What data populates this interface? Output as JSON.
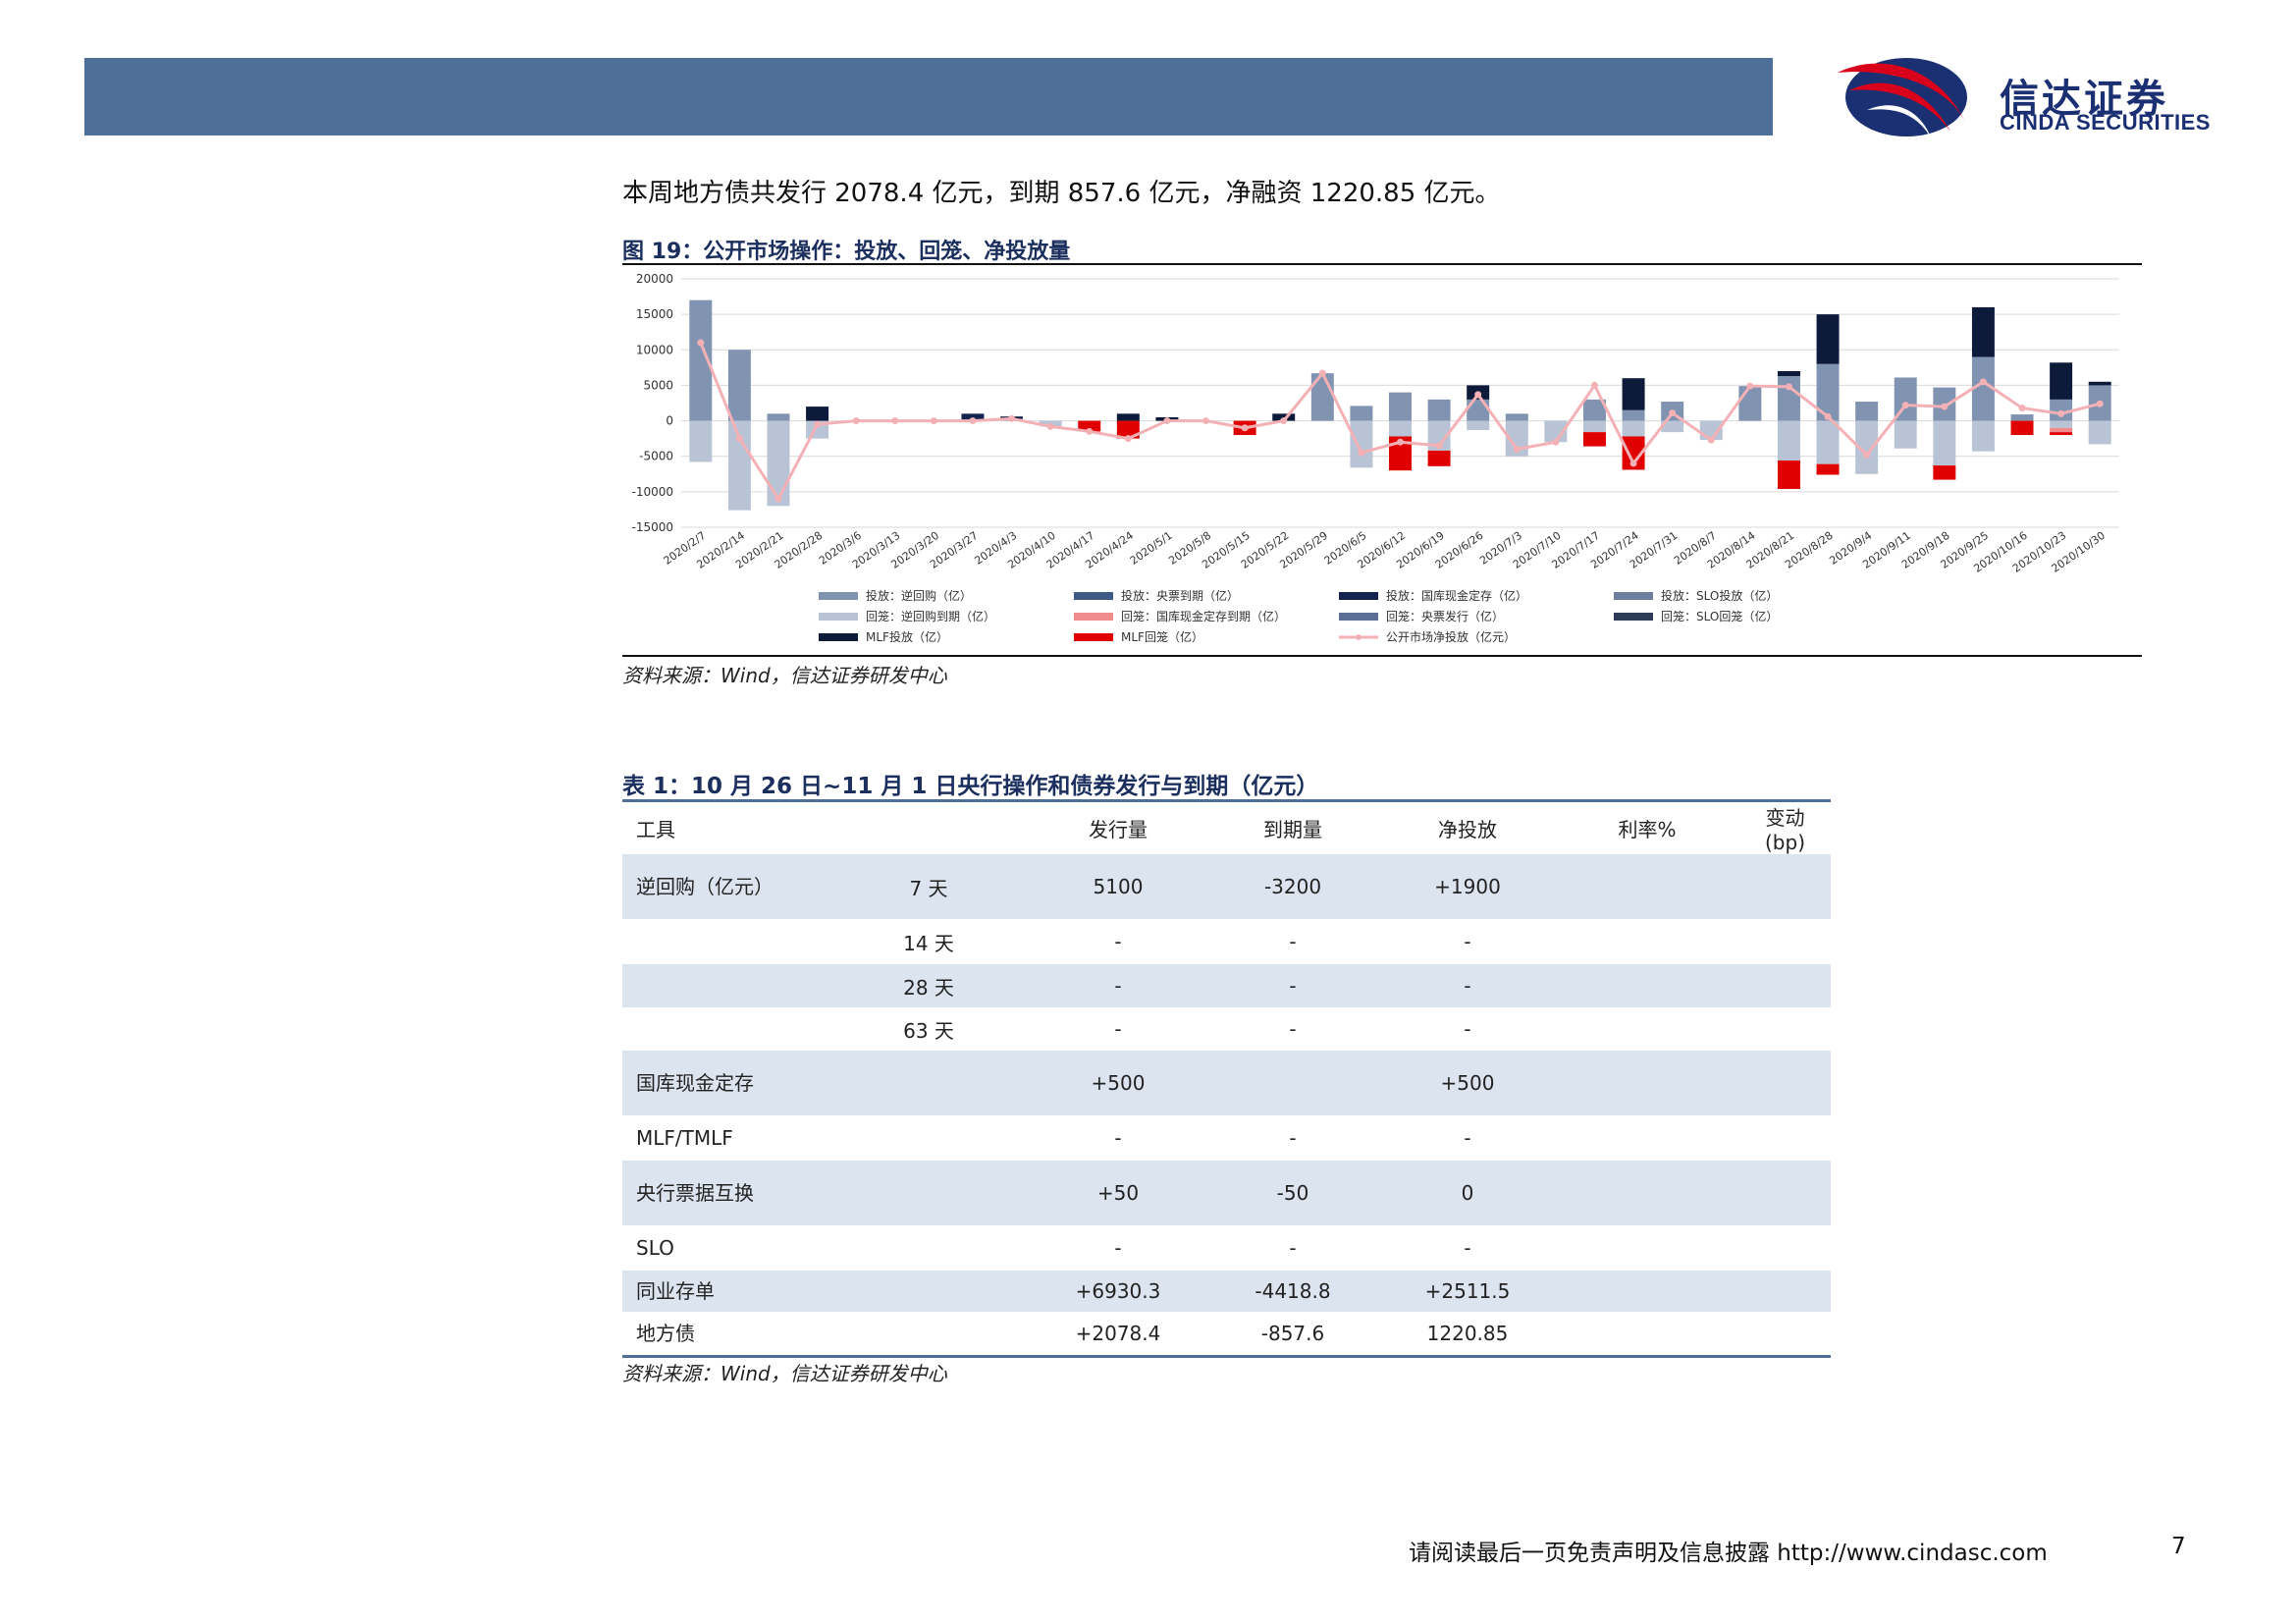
{
  "header": {
    "logo_cn": "信达证券",
    "logo_en": "CINDA SECURITIES"
  },
  "intro_text": "本周地方债共发行 2078.4 亿元，到期 857.6 亿元，净融资 1220.85 亿元。",
  "figure": {
    "title": "图 19：公开市场操作：投放、回笼、净投放量",
    "source": "资料来源：Wind，信达证券研发中心"
  },
  "chart_data": {
    "type": "bar",
    "stacked": true,
    "ylim": [
      -15000,
      20000
    ],
    "yticks": [
      20000,
      15000,
      10000,
      5000,
      0,
      -5000,
      -10000,
      -15000
    ],
    "categories": [
      "2020/2/7",
      "2020/2/14",
      "2020/2/21",
      "2020/2/28",
      "2020/3/6",
      "2020/3/13",
      "2020/3/20",
      "2020/3/27",
      "2020/4/3",
      "2020/4/10",
      "2020/4/17",
      "2020/4/24",
      "2020/5/1",
      "2020/5/8",
      "2020/5/15",
      "2020/5/22",
      "2020/5/29",
      "2020/6/5",
      "2020/6/12",
      "2020/6/19",
      "2020/6/26",
      "2020/7/3",
      "2020/7/10",
      "2020/7/17",
      "2020/7/24",
      "2020/7/31",
      "2020/8/7",
      "2020/8/14",
      "2020/8/21",
      "2020/8/28",
      "2020/9/4",
      "2020/9/11",
      "2020/9/18",
      "2020/9/25",
      "2020/10/16",
      "2020/10/23",
      "2020/10/30"
    ],
    "xticks_shown": [
      "2020/2/7",
      "2020/2/14",
      "2020/2/21",
      "2020/2/28",
      "2020/3/6",
      "2020/3/13",
      "2020/3/20",
      "2020/3/27",
      "2020/4/3",
      "2020/4/10",
      "2020/4/17",
      "2020/4/24",
      "2020/5/1",
      "2020/5/8",
      "2020/5/15",
      "2020/5/22",
      "2020/5/29",
      "2020/6/5",
      "2020/6/12",
      "2020/6/19",
      "2020/6/26",
      "2020/7/3",
      "2020/7/10",
      "2020/7/17",
      "2020/7/24",
      "2020/7/31",
      "2020/8/7",
      "2020/8/14",
      "2020/8/21",
      "2020/8/28",
      "2020/9/4",
      "2020/9/11",
      "2020/9/18",
      "2020/9/25",
      "2020/10/16",
      "2020/10/23",
      "2020/10/30"
    ],
    "series": [
      {
        "name": "投放：逆回购（亿）",
        "color": "#8093b1",
        "kind": "bar",
        "values": [
          17000,
          10000,
          1000,
          0,
          0,
          0,
          0,
          0,
          300,
          0,
          0,
          0,
          0,
          0,
          0,
          0,
          6700,
          2100,
          4000,
          3000,
          3000,
          1000,
          0,
          3000,
          1500,
          2700,
          0,
          4900,
          6300,
          8000,
          2700,
          6100,
          4700,
          9000,
          900,
          3000,
          5000
        ]
      },
      {
        "name": "回笼：逆回购到期（亿）",
        "color": "#b9c3d6",
        "kind": "bar",
        "values": [
          -5800,
          -12600,
          -12000,
          -2500,
          0,
          0,
          0,
          0,
          0,
          -800,
          0,
          0,
          0,
          0,
          0,
          0,
          0,
          -6600,
          -2200,
          -4200,
          -1300,
          -5000,
          -3000,
          -1600,
          -2200,
          -1600,
          -2700,
          0,
          -5600,
          -6100,
          -7500,
          -3900,
          -6300,
          -4300,
          0,
          -1000,
          -3300
        ]
      },
      {
        "name": "投放：央票到期（亿）",
        "color": "#3f5a85",
        "kind": "bar",
        "values": [
          0,
          0,
          0,
          0,
          0,
          0,
          0,
          0,
          0,
          0,
          0,
          0,
          0,
          0,
          0,
          0,
          0,
          0,
          0,
          0,
          0,
          0,
          0,
          0,
          0,
          0,
          0,
          0,
          0,
          0,
          0,
          0,
          0,
          0,
          0,
          0,
          0
        ]
      },
      {
        "name": "回笼：国库现金定存到期（亿）",
        "color": "#f08c8c",
        "kind": "bar",
        "values": [
          0,
          0,
          0,
          0,
          0,
          0,
          0,
          0,
          0,
          0,
          0,
          0,
          0,
          0,
          0,
          0,
          0,
          0,
          0,
          0,
          0,
          0,
          0,
          0,
          0,
          0,
          0,
          0,
          0,
          0,
          0,
          0,
          0,
          0,
          0,
          -600,
          0
        ]
      },
      {
        "name": "MLF投放（亿）",
        "color": "#0d1a3a",
        "kind": "bar",
        "values": [
          0,
          0,
          0,
          2000,
          0,
          0,
          0,
          0,
          300,
          0,
          0,
          1000,
          500,
          0,
          0,
          1000,
          0,
          0,
          0,
          0,
          2000,
          0,
          0,
          0,
          4500,
          0,
          0,
          0,
          700,
          7000,
          0,
          0,
          0,
          7000,
          0,
          5200,
          500
        ]
      },
      {
        "name": "投放：国库现金定存（亿）",
        "color": "#14254f",
        "kind": "bar",
        "values": [
          0,
          0,
          0,
          0,
          0,
          0,
          0,
          1000,
          0,
          0,
          0,
          0,
          0,
          0,
          0,
          0,
          0,
          0,
          0,
          0,
          0,
          0,
          0,
          0,
          0,
          0,
          0,
          0,
          0,
          0,
          0,
          0,
          0,
          0,
          0,
          0,
          0
        ]
      },
      {
        "name": "回笼：央票发行（亿）",
        "color": "#5c6f94",
        "kind": "bar",
        "values": [
          0,
          0,
          0,
          0,
          0,
          0,
          0,
          0,
          0,
          0,
          0,
          0,
          0,
          0,
          0,
          0,
          0,
          0,
          0,
          0,
          0,
          0,
          0,
          0,
          0,
          0,
          0,
          0,
          0,
          0,
          0,
          0,
          0,
          0,
          0,
          0,
          0
        ]
      },
      {
        "name": "MLF回笼（亿）",
        "color": "#e00000",
        "kind": "bar",
        "values": [
          0,
          0,
          0,
          0,
          0,
          0,
          0,
          0,
          0,
          0,
          -1500,
          -2500,
          0,
          0,
          -2000,
          0,
          0,
          0,
          -4800,
          -2200,
          0,
          0,
          0,
          -2000,
          -4700,
          0,
          0,
          0,
          -4000,
          -1500,
          0,
          0,
          -2000,
          0,
          -2000,
          -400,
          0
        ]
      },
      {
        "name": "投放：SLO投放（亿）",
        "color": "#6d7e9f",
        "kind": "bar",
        "values": [
          0,
          0,
          0,
          0,
          0,
          0,
          0,
          0,
          0,
          0,
          0,
          0,
          0,
          0,
          0,
          0,
          0,
          0,
          0,
          0,
          0,
          0,
          0,
          0,
          0,
          0,
          0,
          0,
          0,
          0,
          0,
          0,
          0,
          0,
          0,
          0,
          0
        ]
      },
      {
        "name": "回笼：SLO回笼（亿）",
        "color": "#2e3c57",
        "kind": "bar",
        "values": [
          0,
          0,
          0,
          0,
          0,
          0,
          0,
          0,
          0,
          0,
          0,
          0,
          0,
          0,
          0,
          0,
          0,
          0,
          0,
          0,
          0,
          0,
          0,
          0,
          0,
          0,
          0,
          0,
          0,
          0,
          0,
          0,
          0,
          0,
          0,
          0,
          0
        ]
      },
      {
        "name": "公开市场净投放（亿元）",
        "color": "#f4b1b5",
        "kind": "line",
        "values": [
          11000,
          -2500,
          -11000,
          -500,
          0,
          0,
          0,
          0,
          300,
          -800,
          -1500,
          -2500,
          0,
          0,
          -1000,
          0,
          6700,
          -4500,
          -3000,
          -3500,
          3700,
          -4000,
          -3000,
          5000,
          -6000,
          1100,
          -2700,
          4900,
          4800,
          600,
          -4800,
          2200,
          2000,
          5500,
          1800,
          1000,
          2400
        ]
      }
    ]
  },
  "table": {
    "title": "表 1：10 月 26 日~11 月 1 日央行操作和债券发行与到期（亿元）",
    "headers": [
      "工具",
      "",
      "发行量",
      "到期量",
      "净投放",
      "利率%",
      "变动(bp)"
    ],
    "rows": [
      {
        "tool": "逆回购（亿元）",
        "term": "7 天",
        "issue": "5100",
        "mature": "-3200",
        "net": "+1900",
        "rate": "",
        "change": ""
      },
      {
        "tool": "",
        "term": "14 天",
        "issue": "-",
        "mature": "-",
        "net": "-",
        "rate": "",
        "change": ""
      },
      {
        "tool": "",
        "term": "28 天",
        "issue": "-",
        "mature": "-",
        "net": "-",
        "rate": "",
        "change": ""
      },
      {
        "tool": "",
        "term": "63 天",
        "issue": "-",
        "mature": "-",
        "net": "-",
        "rate": "",
        "change": ""
      },
      {
        "tool": "国库现金定存",
        "term": "",
        "issue": "+500",
        "mature": "",
        "net": "+500",
        "rate": "",
        "change": ""
      },
      {
        "tool": "MLF/TMLF",
        "term": "",
        "issue": "-",
        "mature": "-",
        "net": "-",
        "rate": "",
        "change": ""
      },
      {
        "tool": "央行票据互换",
        "term": "",
        "issue": "+50",
        "mature": "-50",
        "net": "0",
        "rate": "",
        "change": ""
      },
      {
        "tool": "SLO",
        "term": "",
        "issue": "-",
        "mature": "-",
        "net": "-",
        "rate": "",
        "change": ""
      },
      {
        "tool": "同业存单",
        "term": "",
        "issue": "+6930.3",
        "mature": "-4418.8",
        "net": "+2511.5",
        "rate": "",
        "change": ""
      },
      {
        "tool": "地方债",
        "term": "",
        "issue": "+2078.4",
        "mature": "-857.6",
        "net": "1220.85",
        "rate": "",
        "change": ""
      }
    ],
    "source": "资料来源：Wind，信达证券研发中心"
  },
  "footer": {
    "disclaimer": "请阅读最后一页免责声明及信息披露 http://www.cindasc.com",
    "page": "7"
  }
}
